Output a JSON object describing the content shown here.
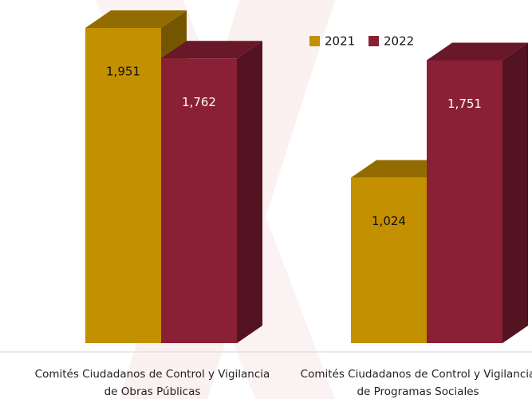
{
  "chart_data": {
    "type": "bar3d",
    "categories": [
      "Comités Ciudadanos de Control y Vigilancia de Obras Públicas",
      "Comités Ciudadanos de Control y Vigilancia de Programas Sociales"
    ],
    "series": [
      {
        "name": "2021",
        "color": "#c39000",
        "values": [
          1951,
          1024
        ],
        "value_labels": [
          "1,951",
          "1,024"
        ]
      },
      {
        "name": "2022",
        "color": "#8a2035",
        "values": [
          1762,
          1751
        ],
        "value_labels": [
          "1,762",
          "1,751"
        ]
      }
    ],
    "legend": "top-right"
  }
}
